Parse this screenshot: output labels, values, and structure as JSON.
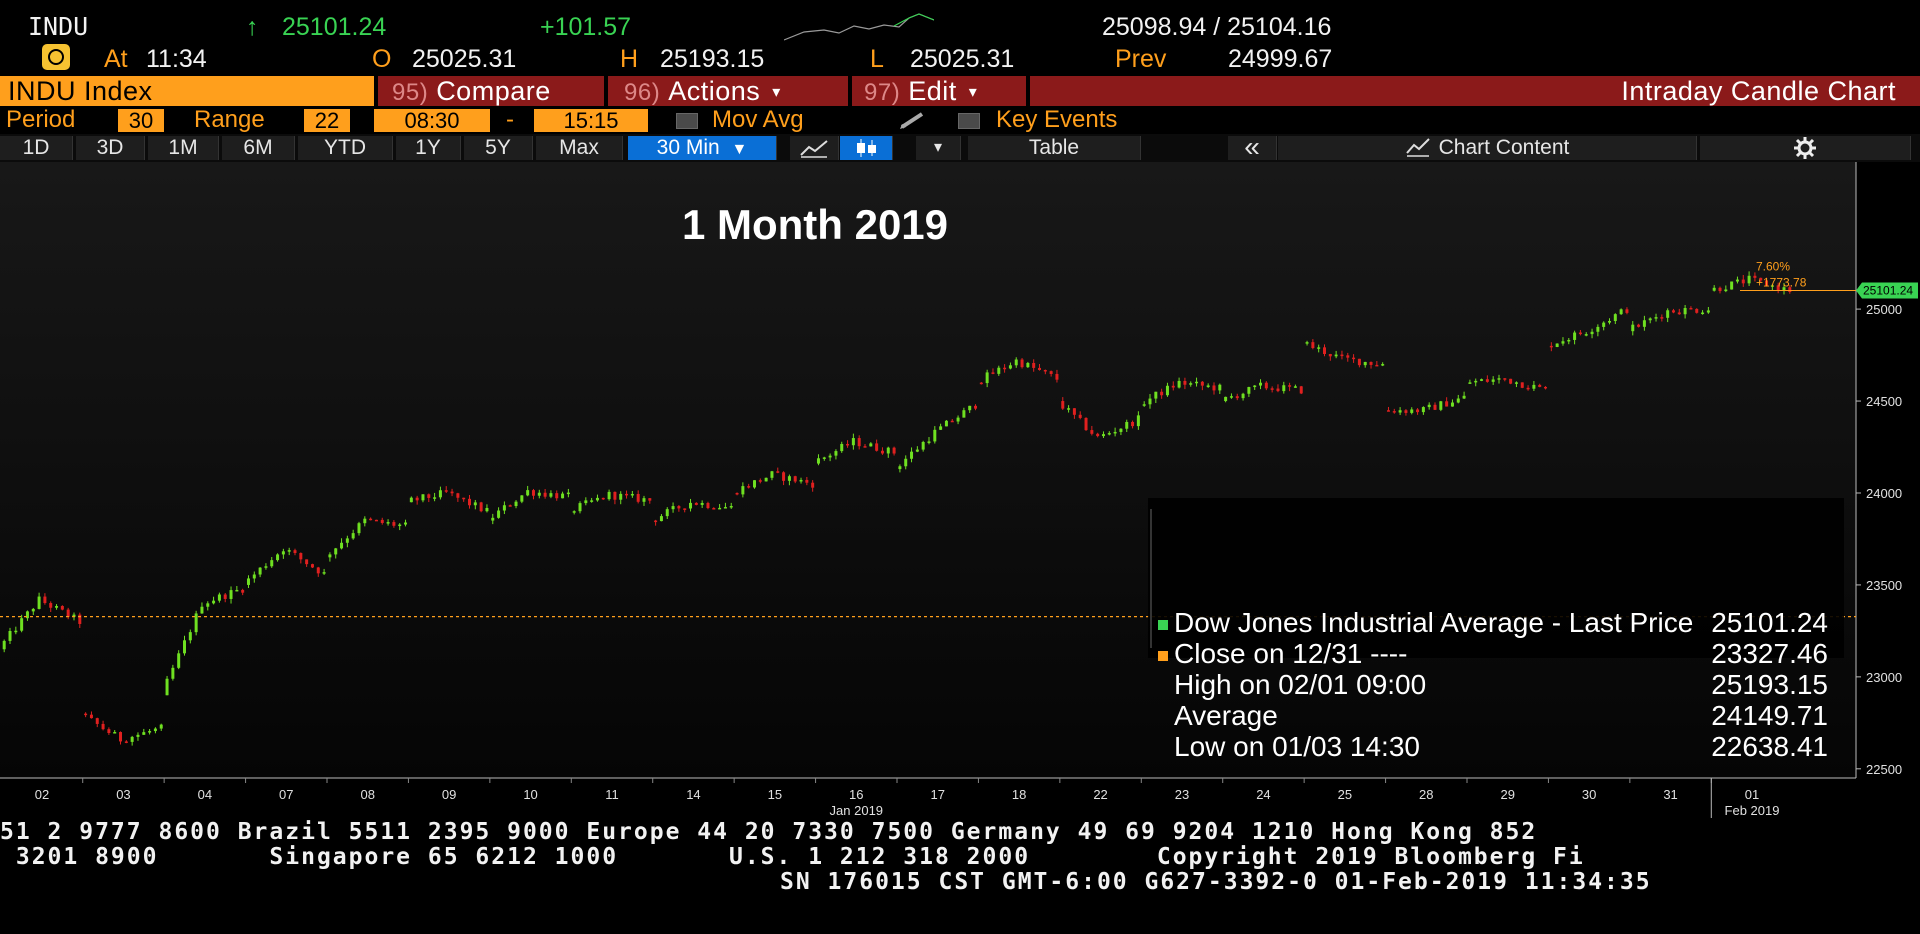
{
  "quote": {
    "ticker": "INDU",
    "arrow": "↑",
    "last": "25101.24",
    "change": "+101.57",
    "bid_ask": "25098.94 / 25104.16",
    "at_label": "At",
    "time": "11:34",
    "open_label": "O",
    "open": "25025.31",
    "high_label": "H",
    "high": "25193.15",
    "low_label": "L",
    "low": "25025.31",
    "prev_label": "Prev",
    "prev": "24999.67"
  },
  "menubar": {
    "security": "INDU Index",
    "compare_num": "95)",
    "compare": "Compare",
    "actions_num": "96)",
    "actions": "Actions",
    "edit_num": "97)",
    "edit": "Edit",
    "title": "Intraday Candle Chart",
    "caret": "▾"
  },
  "settings": {
    "period_label": "Period",
    "period": "30",
    "range_label": "Range",
    "range": "22",
    "start_time": "08:30",
    "dash": "-",
    "end_time": "15:15",
    "mov_avg": "Mov Avg",
    "key_events": "Key Events"
  },
  "toolbar": {
    "ranges": [
      "1D",
      "3D",
      "1M",
      "6M",
      "YTD",
      "1Y",
      "5Y",
      "Max"
    ],
    "interval": "30 Min",
    "interval_caret": "▼",
    "dropdown_caret": "▾",
    "table": "Table",
    "collapse": "«",
    "chart_content": "Chart Content"
  },
  "chart_data": {
    "type": "candlestick",
    "title": "1 Month 2019",
    "x_ticks": [
      "02",
      "03",
      "04",
      "07",
      "08",
      "09",
      "10",
      "11",
      "14",
      "15",
      "16",
      "17",
      "18",
      "22",
      "23",
      "24",
      "25",
      "28",
      "29",
      "30",
      "31",
      "01"
    ],
    "x_month_labels": [
      {
        "after_tick": "16",
        "text": "Jan 2019"
      },
      {
        "after_tick": "01",
        "text": "Feb 2019"
      }
    ],
    "y_ticks": [
      22500,
      23000,
      23500,
      24000,
      24500,
      25000
    ],
    "ylim": [
      22450,
      25800
    ],
    "last_price": 25101.24,
    "last_price_label": "25101.24",
    "reference_close": 23327.46,
    "change_pct_label": "7.60%",
    "change_abs_label": "+1773.78",
    "daily_path": [
      [
        23150,
        23420,
        23300
      ],
      [
        22800,
        22660,
        22720
      ],
      [
        22900,
        23400,
        23480
      ],
      [
        23500,
        23700,
        23560
      ],
      [
        23650,
        23850,
        23820
      ],
      [
        23950,
        24000,
        23900
      ],
      [
        23850,
        24010,
        23980
      ],
      [
        23900,
        23990,
        23960
      ],
      [
        23850,
        23950,
        23920
      ],
      [
        24000,
        24100,
        24050
      ],
      [
        24160,
        24280,
        24220
      ],
      [
        24130,
        24330,
        24480
      ],
      [
        24600,
        24720,
        24620
      ],
      [
        24500,
        24300,
        24400
      ],
      [
        24480,
        24600,
        24570
      ],
      [
        24500,
        24580,
        24560
      ],
      [
        24820,
        24730,
        24700
      ],
      [
        24450,
        24450,
        24520
      ],
      [
        24600,
        24620,
        24560
      ],
      [
        24800,
        24880,
        25000
      ],
      [
        24880,
        24990,
        25000
      ],
      [
        25100,
        25160,
        25101
      ]
    ],
    "legend": [
      {
        "label": "Dow Jones Industrial Average - Last Price",
        "value": "25101.24",
        "color": "#39d353"
      },
      {
        "label": "Close on 12/31 ----",
        "value": "23327.46",
        "color": "#ff9f1c"
      },
      {
        "label": "High on 02/01 09:00",
        "value": "25193.15",
        "color": "#888888"
      },
      {
        "label": "Average",
        "value": "24149.71",
        "color": "#888888"
      },
      {
        "label": "Low on 01/03 14:30",
        "value": "22638.41",
        "color": "#888888"
      }
    ],
    "up_color": "#6fe021",
    "down_color": "#e0201f"
  },
  "ticker_lines": [
    "51 2 9777 8600 Brazil 5511 2395 9000 Europe 44 20 7330 7500 Germany 49 69 9204 1210 Hong Kong 852",
    " 3201 8900       Singapore 65 6212 1000       U.S. 1 212 318 2000        Copyright 2019 Bloomberg Fi",
    "SN 176015 CST  GMT-6:00 G627-3392-0 01-Feb-2019 11:34:35"
  ],
  "colors": {
    "accent_orange": "#ff9f1c",
    "menu_red": "#8b1a1a",
    "toolbar_blue": "#0a6fd6"
  }
}
